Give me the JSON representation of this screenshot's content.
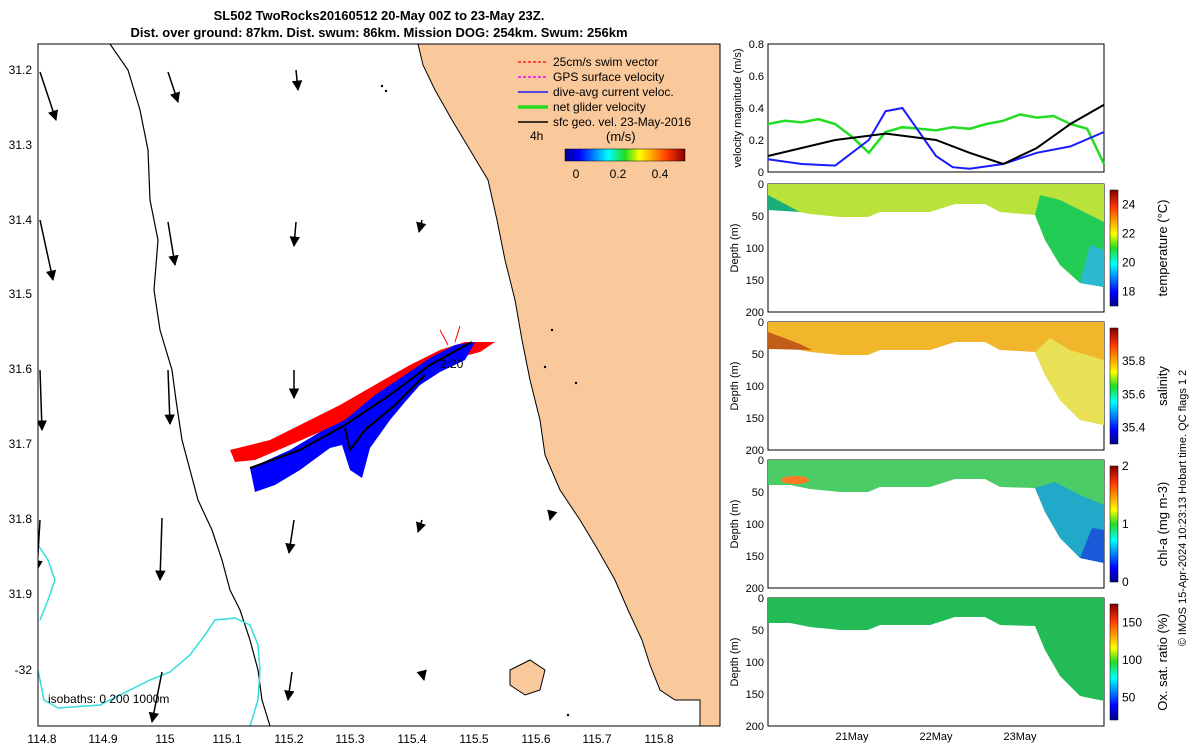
{
  "title": {
    "line1": "SL502 TwoRocks20160512 20-May 00Z to 23-May 23Z.",
    "line2": "Dist. over ground: 87km. Dist. swum: 86km. Mission DOG: 254km. Swum: 256km"
  },
  "map": {
    "x_ticks": [
      "114.8",
      "114.9",
      "115",
      "115.1",
      "115.2",
      "115.3",
      "115.4",
      "115.5",
      "115.6",
      "115.7",
      "115.8"
    ],
    "y_ticks": [
      "31.2",
      "31.3",
      "31.4",
      "31.5",
      "31.6",
      "31.7",
      "31.8",
      "31.9",
      "-32"
    ],
    "legend": {
      "items": [
        {
          "label": "25cm/s swim vector",
          "color": "#ff2020",
          "style": "dashed"
        },
        {
          "label": "GPS surface velocity",
          "color": "#ff00ff",
          "style": "dashed"
        },
        {
          "label": "dive-avg current veloc.",
          "color": "#1a1aff",
          "style": "solid"
        },
        {
          "label": "net glider velocity",
          "color": "#22dd22",
          "style": "thick"
        },
        {
          "label": "sfc geo. vel. 23-May-2016",
          "color": "#000000",
          "style": "solid"
        }
      ],
      "time_scale_label": "4h",
      "colorbar_title": "(m/s)",
      "colorbar_ticks": [
        "0",
        "0.2",
        "0.4"
      ]
    },
    "track_label": "2:20",
    "isobaths_text": "isobaths: 0   200  1000m",
    "colors": {
      "land": "#f9c89b",
      "coast": "#000000",
      "isobath_1000": "#000000",
      "isobath_200": "#33dddd",
      "track_red": "#ff0000",
      "track_blue": "#0000ff"
    }
  },
  "chart_data": [
    {
      "type": "line",
      "ylabel": "velocity magnitude (m/s)",
      "ylim": [
        0,
        0.8
      ],
      "y_ticks": [
        "0",
        "0.2",
        "0.4",
        "0.6",
        "0.8"
      ],
      "x_ticks": [
        "21May",
        "22May",
        "23May"
      ],
      "series": [
        {
          "name": "net glider velocity",
          "color": "#22dd22",
          "x": [
            0,
            0.05,
            0.1,
            0.15,
            0.2,
            0.25,
            0.3,
            0.35,
            0.4,
            0.45,
            0.5,
            0.55,
            0.6,
            0.65,
            0.7,
            0.75,
            0.8,
            0.85,
            0.9,
            0.95,
            1.0
          ],
          "values": [
            0.3,
            0.32,
            0.31,
            0.33,
            0.3,
            0.22,
            0.12,
            0.25,
            0.28,
            0.27,
            0.26,
            0.28,
            0.27,
            0.3,
            0.32,
            0.36,
            0.34,
            0.35,
            0.3,
            0.27,
            0.05
          ]
        },
        {
          "name": "dive-avg current veloc.",
          "color": "#1a1aff",
          "x": [
            0,
            0.1,
            0.2,
            0.3,
            0.35,
            0.4,
            0.45,
            0.5,
            0.55,
            0.6,
            0.7,
            0.8,
            0.9,
            1.0
          ],
          "values": [
            0.08,
            0.05,
            0.04,
            0.2,
            0.38,
            0.4,
            0.25,
            0.1,
            0.03,
            0.02,
            0.05,
            0.12,
            0.16,
            0.25
          ]
        },
        {
          "name": "sfc geo. vel.",
          "color": "#000000",
          "x": [
            0,
            0.2,
            0.35,
            0.5,
            0.6,
            0.7,
            0.8,
            0.9,
            1.0
          ],
          "values": [
            0.1,
            0.2,
            0.24,
            0.2,
            0.12,
            0.05,
            0.15,
            0.3,
            0.42
          ]
        }
      ]
    },
    {
      "type": "heatmap",
      "ylabel": "Depth (m)",
      "colorbar_label": "temperature (°C)",
      "y_ticks": [
        "0",
        "50",
        "100",
        "150",
        "200"
      ],
      "colorbar_ticks": [
        "18",
        "20",
        "22",
        "24"
      ],
      "clim": [
        17,
        25
      ]
    },
    {
      "type": "heatmap",
      "ylabel": "Depth (m)",
      "colorbar_label": "salinity",
      "y_ticks": [
        "0",
        "50",
        "100",
        "150",
        "200"
      ],
      "colorbar_ticks": [
        "35.4",
        "35.6",
        "35.8"
      ],
      "clim": [
        35.3,
        36.0
      ]
    },
    {
      "type": "heatmap",
      "ylabel": "Depth (m)",
      "colorbar_label": "chl-a (mg m-3)",
      "y_ticks": [
        "0",
        "50",
        "100",
        "150",
        "200"
      ],
      "colorbar_ticks": [
        "0",
        "1",
        "2"
      ],
      "clim": [
        0,
        2
      ]
    },
    {
      "type": "heatmap",
      "ylabel": "Depth (m)",
      "colorbar_label": "Ox. sat. ratio (%)",
      "y_ticks": [
        "0",
        "50",
        "100",
        "150",
        "200"
      ],
      "colorbar_ticks": [
        "50",
        "100",
        "150"
      ],
      "clim": [
        20,
        175
      ],
      "x_ticks": [
        "21May",
        "22May",
        "23May"
      ]
    }
  ],
  "side_note": "© IMOS 15-Apr-2024 10:23:13 Hobart time. QC flags 1  2"
}
